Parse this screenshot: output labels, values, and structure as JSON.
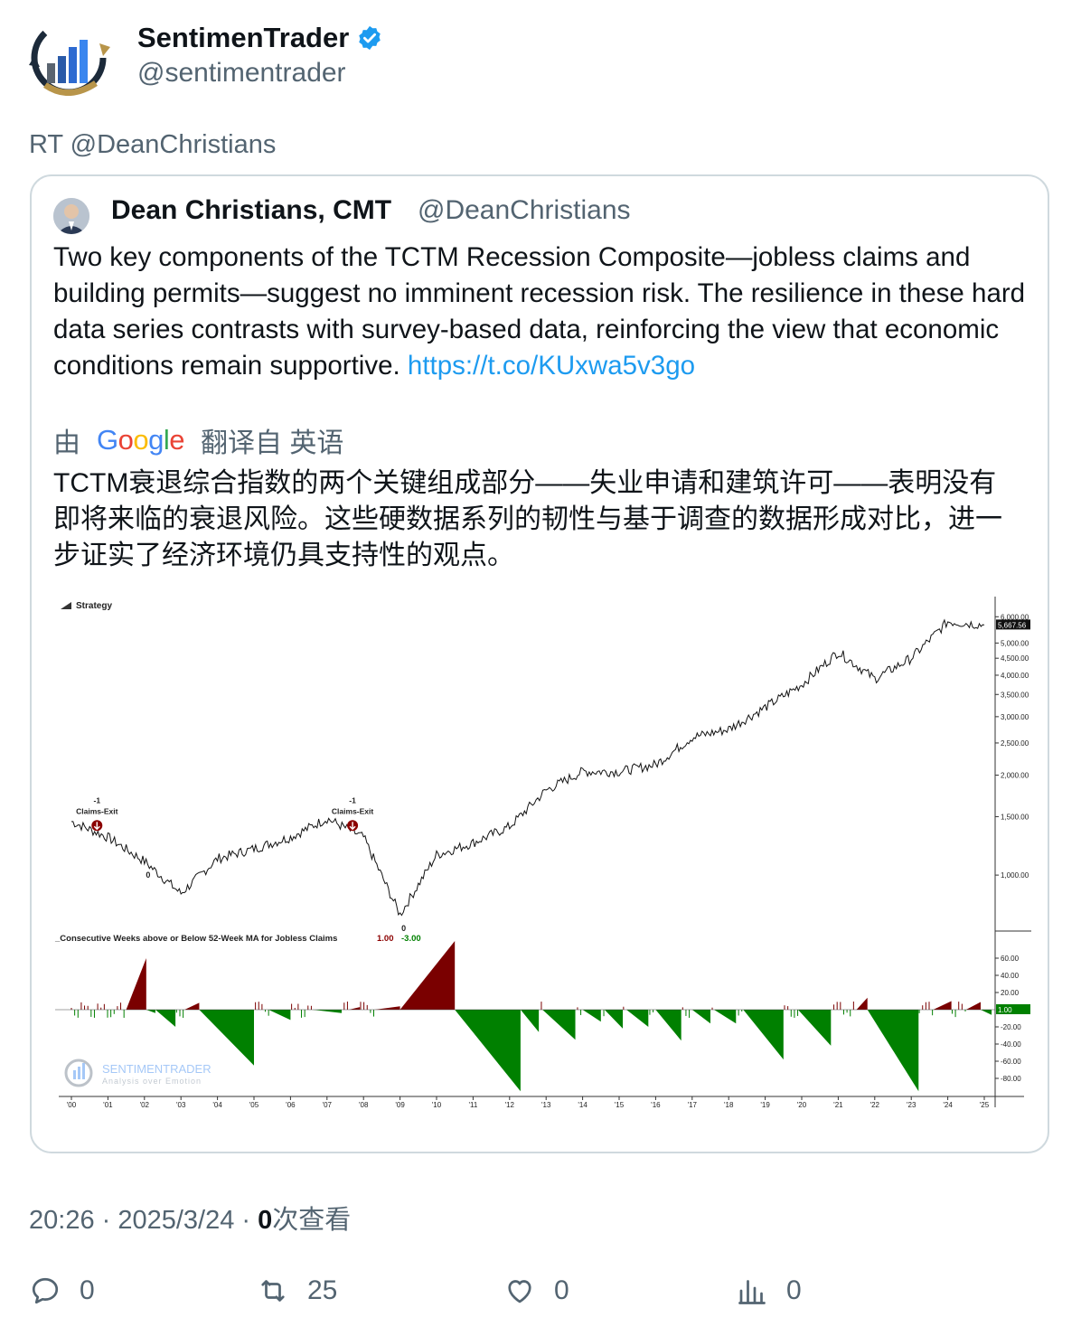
{
  "tweet": {
    "author_name": "SentimenTrader",
    "author_handle": "@sentimentrader",
    "retweet_label": "RT @DeanChristians",
    "timestamp": "20:26 · 2025/3/24 · ",
    "views_count": "0",
    "views_label": "次查看"
  },
  "quote": {
    "author_name": "Dean Christians, CMT",
    "author_handle": "@DeanChristians",
    "text": "Two key components of the TCTM Recession Composite—jobless claims and building permits—suggest no imminent recession risk. The resilience in these hard data series contrasts with survey-based data, reinforcing the view that economic conditions remain supportive. ",
    "link": "https://t.co/KUxwa5v3go",
    "translate_prefix": "由",
    "translate_brand": "Google",
    "translate_suffix": "翻译自 英语",
    "translated_text": "TCTM衰退综合指数的两个关键组成部分——失业申请和建筑许可——表明没有即将来临的衰退风险。这些硬数据系列的韧性与基于调查的数据形成对比，进一步证实了经济环境仍具支持性的观点。"
  },
  "actions": {
    "reply_count": "0",
    "retweet_count": "25",
    "like_count": "0",
    "views_count": "0"
  },
  "colors": {
    "link": "#1d9bf0",
    "secondary_text": "#536471",
    "positive_fill": "#7a0000",
    "negative_fill": "#008000"
  },
  "chart_data": [
    {
      "type": "line",
      "title": "Strategy",
      "log_scale": true,
      "x": [
        "'00",
        "'01",
        "'02",
        "'03",
        "'04",
        "'05",
        "'06",
        "'07",
        "'08",
        "'09",
        "'10",
        "'11",
        "'12",
        "'13",
        "'14",
        "'15",
        "'16",
        "'17",
        "'18",
        "'19",
        "'20",
        "'21",
        "'22",
        "'23",
        "'24",
        "'25"
      ],
      "series": [
        {
          "values": [
            1450,
            1300,
            1100,
            880,
            1120,
            1200,
            1300,
            1480,
            1300,
            760,
            1150,
            1250,
            1400,
            1800,
            2050,
            2050,
            2150,
            2600,
            2750,
            3200,
            3750,
            4700,
            3900,
            4500,
            5800,
            5667.56
          ]
        }
      ],
      "y_ticks": [
        "6,000.00",
        "5,000.00",
        "4,500.00",
        "4,000.00",
        "3,500.00",
        "3,000.00",
        "2,500.00",
        "2,000.00",
        "1,500.00",
        "1,000.00"
      ],
      "y_tick_values": [
        6000,
        5000,
        4500,
        4000,
        3500,
        3000,
        2500,
        2000,
        1500,
        1000
      ],
      "last_value_label": "5,667.56",
      "annotations": [
        {
          "label": "-1",
          "sub": "Claims-Exit",
          "year": "'01"
        },
        {
          "label": "-1",
          "sub": "Claims-Exit",
          "year": "'08"
        },
        {
          "label": "0",
          "year": "'02"
        },
        {
          "label": "0",
          "year": "'09"
        }
      ]
    },
    {
      "type": "area",
      "title": "_Consecutive Weeks above or Below 52-Week MA for Jobless Claims",
      "legend_values": [
        "1.00",
        "-3.00"
      ],
      "ylim": [
        -100,
        70
      ],
      "y_ticks": [
        "60.00",
        "40.00",
        "20.00",
        "-20.00",
        "-40.00",
        "-60.00",
        "-80.00"
      ],
      "y_tick_values": [
        60,
        40,
        20,
        -20,
        -40,
        -60,
        -80
      ],
      "last_value_label": "1.00",
      "x": [
        "'00",
        "'01",
        "'02",
        "'03",
        "'04",
        "'05",
        "'06",
        "'07",
        "'08",
        "'09",
        "'10",
        "'11",
        "'12",
        "'13",
        "'14",
        "'15",
        "'16",
        "'17",
        "'18",
        "'19",
        "'20",
        "'21",
        "'22",
        "'23",
        "'24",
        "'25"
      ],
      "watermark_brand": "SENTIMENTRADER",
      "watermark_tagline": "Analysis over Emotion"
    }
  ]
}
